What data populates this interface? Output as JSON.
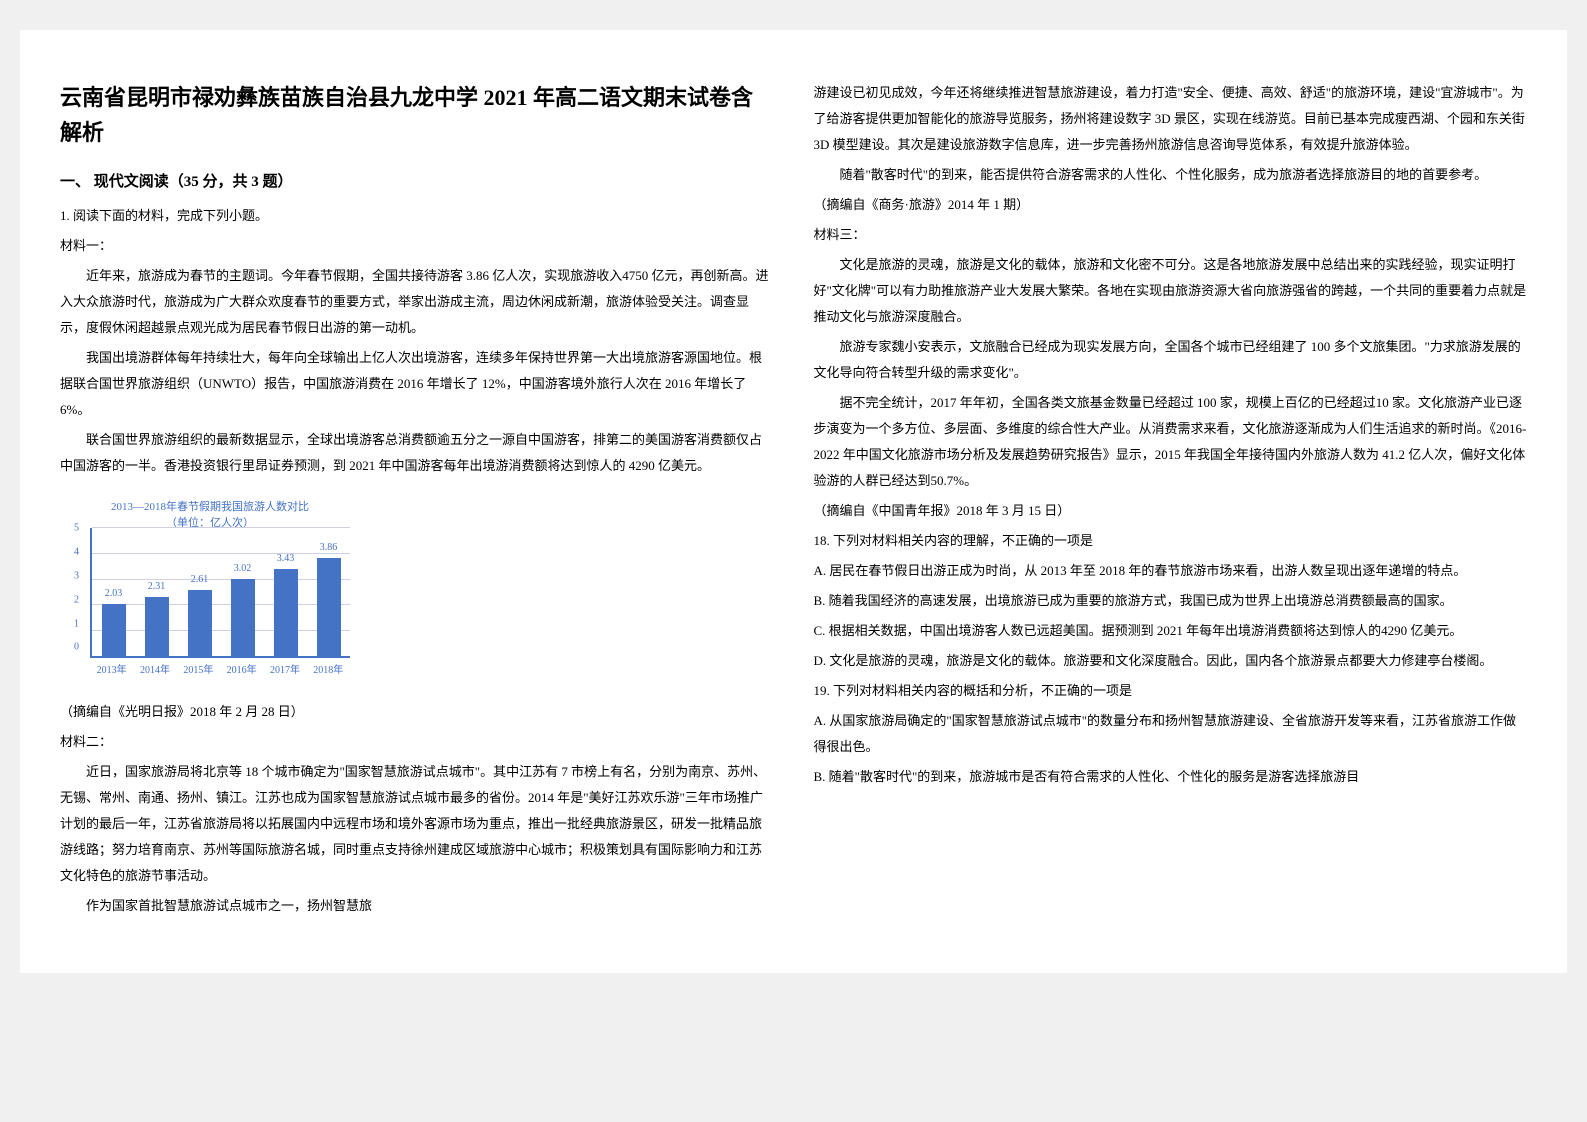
{
  "title": "云南省昆明市禄劝彝族苗族自治县九龙中学 2021 年高二语文期末试卷含解析",
  "section1_header": "一、 现代文阅读（35 分，共 3 题）",
  "q1_intro": "1. 阅读下面的材料，完成下列小题。",
  "material1_label": "材料一：",
  "m1_p1": "近年来，旅游成为春节的主题词。今年春节假期，全国共接待游客 3.86 亿人次，实现旅游收入4750 亿元，再创新高。进入大众旅游时代，旅游成为广大群众欢度春节的重要方式，举家出游成主流，周边休闲成新潮，旅游体验受关注。调查显示，度假休闲超越景点观光成为居民春节假日出游的第一动机。",
  "m1_p2": "我国出境游群体每年持续壮大，每年向全球输出上亿人次出境游客，连续多年保持世界第一大出境旅游客源国地位。根据联合国世界旅游组织（UNWTO）报告，中国旅游消费在 2016 年增长了 12%，中国游客境外旅行人次在 2016 年增长了 6%。",
  "m1_p3": "联合国世界旅游组织的最新数据显示，全球出境游客总消费额逾五分之一源自中国游客，排第二的美国游客消费额仅占中国游客的一半。香港投资银行里昂证券预测，到 2021 年中国游客每年出境游消费额将达到惊人的 4290 亿美元。",
  "chart": {
    "title_line1": "2013—2018年春节假期我国旅游人数对比",
    "title_line2": "（单位：亿人次）",
    "categories": [
      "2013年",
      "2014年",
      "2015年",
      "2016年",
      "2017年",
      "2018年"
    ],
    "values": [
      2.03,
      2.31,
      2.61,
      3.02,
      3.43,
      3.86
    ],
    "ylim_max": 5,
    "ylim_min": 0,
    "y_ticks": [
      5,
      4,
      3,
      2,
      1,
      0
    ],
    "bar_color": "#4472c4",
    "grid_color": "#d0d0e0",
    "axis_color": "#4472c4"
  },
  "m1_source": "（摘编自《光明日报》2018 年 2 月 28 日）",
  "material2_label": "材料二：",
  "m2_p1": "近日，国家旅游局将北京等 18 个城市确定为\"国家智慧旅游试点城市\"。其中江苏有 7 市榜上有名，分别为南京、苏州、无锡、常州、南通、扬州、镇江。江苏也成为国家智慧旅游试点城市最多的省份。2014 年是\"美好江苏欢乐游\"三年市场推广计划的最后一年，江苏省旅游局将以拓展国内中远程市场和境外客源市场为重点，推出一批经典旅游景区，研发一批精品旅游线路；努力培育南京、苏州等国际旅游名城，同时重点支持徐州建成区域旅游中心城市；积极策划具有国际影响力和江苏文化特色的旅游节事活动。",
  "m2_p2": "作为国家首批智慧旅游试点城市之一，扬州智慧旅游建设已初见成效，今年还将继续推进智慧旅游建设，着力打造\"安全、便捷、高效、舒适\"的旅游环境，建设\"宜游城市\"。为了给游客提供更加智能化的旅游导览服务，扬州将建设数字 3D 景区，实现在线游览。目前已基本完成瘦西湖、个园和东关街 3D 模型建设。其次是建设旅游数字信息库，进一步完善扬州旅游信息咨询导览体系，有效提升旅游体验。",
  "m2_p3": "随着\"散客时代\"的到来，能否提供符合游客需求的人性化、个性化服务，成为旅游者选择旅游目的地的首要参考。",
  "m2_source": "（摘编自《商务·旅游》2014 年 1 期）",
  "material3_label": "材料三：",
  "m3_p1": "文化是旅游的灵魂，旅游是文化的载体，旅游和文化密不可分。这是各地旅游发展中总结出来的实践经验，现实证明打好\"文化牌\"可以有力助推旅游产业大发展大繁荣。各地在实现由旅游资源大省向旅游强省的跨越，一个共同的重要着力点就是推动文化与旅游深度融合。",
  "m3_p2": "旅游专家魏小安表示，文旅融合已经成为现实发展方向，全国各个城市已经组建了 100 多个文旅集团。\"力求旅游发展的文化导向符合转型升级的需求变化\"。",
  "m3_p3": "据不完全统计，2017 年年初，全国各类文旅基金数量已经超过 100 家，规模上百亿的已经超过10 家。文化旅游产业已逐步演变为一个多方位、多层面、多维度的综合性大产业。从消费需求来看，文化旅游逐渐成为人们生活追求的新时尚。《2016-2022 年中国文化旅游市场分析及发展趋势研究报告》显示，2015 年我国全年接待国内外旅游人数为 41.2 亿人次，偏好文化体验游的人群已经达到50.7%。",
  "m3_source": "（摘编自《中国青年报》2018 年 3 月 15 日）",
  "q18_prompt": "18.  下列对材料相关内容的理解，不正确的一项是",
  "q18_a": "A.  居民在春节假日出游正成为时尚，从 2013 年至 2018 年的春节旅游市场来看，出游人数呈现出逐年递增的特点。",
  "q18_b": "B.  随着我国经济的高速发展，出境旅游已成为重要的旅游方式，我国已成为世界上出境游总消费额最高的国家。",
  "q18_c": "C.  根据相关数据，中国出境游客人数已远超美国。据预测到 2021 年每年出境游消费额将达到惊人的4290 亿美元。",
  "q18_d": "D.  文化是旅游的灵魂，旅游是文化的载体。旅游要和文化深度融合。因此，国内各个旅游景点都要大力修建亭台楼阁。",
  "q19_prompt": "19.  下列对材料相关内容的概括和分析，不正确的一项是",
  "q19_a": "A.  从国家旅游局确定的\"国家智慧旅游试点城市\"的数量分布和扬州智慧旅游建设、全省旅游开发等来看，江苏省旅游工作做得很出色。",
  "q19_b": "B.  随着\"散客时代\"的到来，旅游城市是否有符合需求的人性化、个性化的服务是游客选择旅游目"
}
